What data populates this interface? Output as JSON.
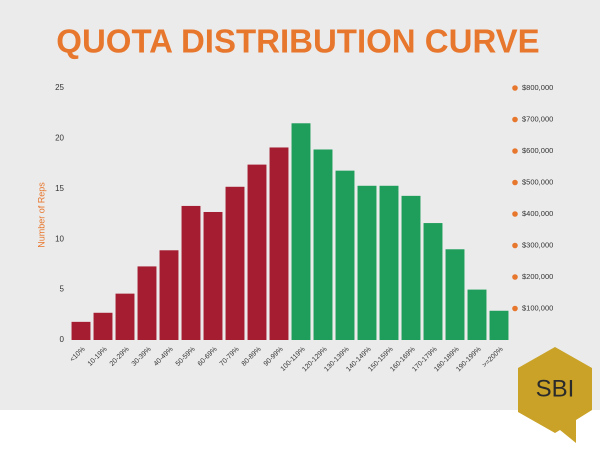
{
  "chart_data": {
    "type": "bar",
    "title": "QUOTA DISTRIBUTION CURVE",
    "y_label": "Number of Reps",
    "categories": [
      "<10%",
      "10-19%",
      "20-29%",
      "30-39%",
      "40-49%",
      "50-59%",
      "60-69%",
      "70-79%",
      "80-89%",
      "90-99%",
      "100-119%",
      "120-129%",
      "130-139%",
      "140-149%",
      "150-159%",
      "160-169%",
      "170-179%",
      "180-189%",
      "190-199%",
      ">=200%"
    ],
    "values": [
      1.8,
      2.7,
      4.6,
      7.3,
      8.9,
      13.3,
      12.7,
      15.2,
      17.4,
      19.1,
      21.5,
      18.9,
      16.8,
      15.3,
      15.3,
      14.3,
      11.6,
      9,
      5,
      2.9
    ],
    "colors": [
      "#a51d31",
      "#a51d31",
      "#a51d31",
      "#a51d31",
      "#a51d31",
      "#a51d31",
      "#a51d31",
      "#a51d31",
      "#a51d31",
      "#a51d31",
      "#1f9d5b",
      "#1f9d5b",
      "#1f9d5b",
      "#1f9d5b",
      "#1f9d5b",
      "#1f9d5b",
      "#1f9d5b",
      "#1f9d5b",
      "#1f9d5b",
      "#1f9d5b"
    ],
    "ylim": [
      0,
      25
    ],
    "yticks": [
      0,
      5,
      10,
      15,
      20,
      25
    ],
    "y2lim": [
      0,
      800000
    ],
    "y2ticks": [
      {
        "value": 100000,
        "label": "$100,000"
      },
      {
        "value": 200000,
        "label": "$200,000"
      },
      {
        "value": 300000,
        "label": "$300,000"
      },
      {
        "value": 400000,
        "label": "$400,000"
      },
      {
        "value": 500000,
        "label": "$500,000"
      },
      {
        "value": 600000,
        "label": "$600,000"
      },
      {
        "value": 700000,
        "label": "$700,000"
      },
      {
        "value": 800000,
        "label": "$800,000"
      }
    ],
    "grid": false,
    "logo": "SBI"
  }
}
